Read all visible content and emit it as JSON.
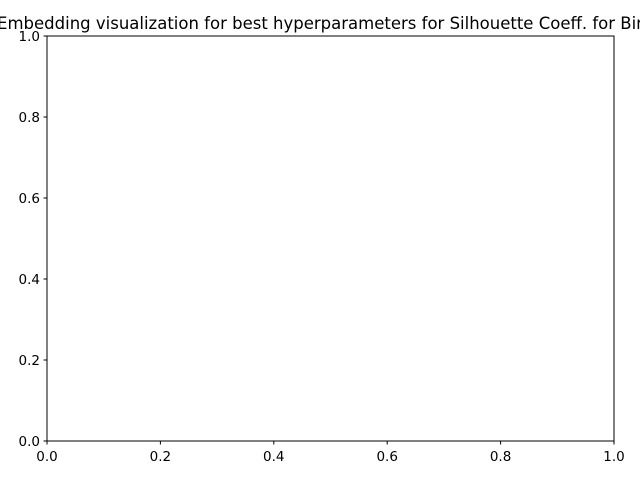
{
  "chart_data": {
    "type": "scatter",
    "title": "Embedding visualization for best hyperparameters for Silhouette Coeff. for Bir",
    "xlabel": "",
    "ylabel": "",
    "xlim": [
      0.0,
      1.0
    ],
    "ylim": [
      0.0,
      1.0
    ],
    "x_ticks": [
      "0.0",
      "0.2",
      "0.4",
      "0.6",
      "0.8",
      "1.0"
    ],
    "y_ticks": [
      "0.0",
      "0.2",
      "0.4",
      "0.6",
      "0.8",
      "1.0"
    ],
    "series": [],
    "grid": false,
    "legend": "none"
  }
}
